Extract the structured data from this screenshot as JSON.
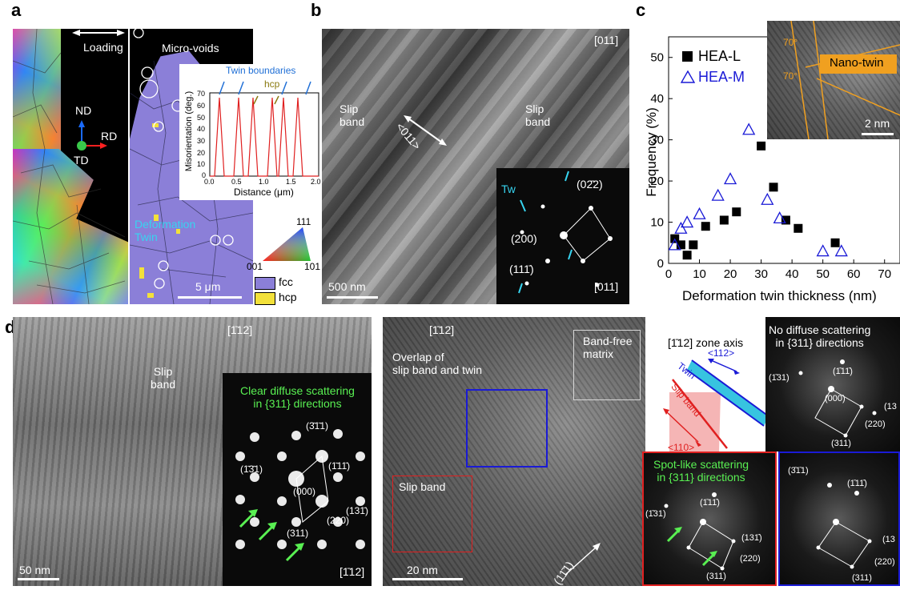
{
  "panel_a": {
    "label": "a",
    "loading": "Loading",
    "micro_voids": "Micro-voids",
    "axis_nd": "ND",
    "axis_rd": "RD",
    "axis_td": "TD",
    "deformation_twin": "Deformation\nTwin",
    "scale_bar": "5 μm",
    "ipf_111": "111",
    "ipf_001": "001",
    "ipf_101": "101",
    "legend_fcc": "fcc",
    "legend_hcp": "hcp",
    "colors": {
      "fcc": "#8b7fd8",
      "hcp": "#f3e13a",
      "misorientation_line": "#e02020",
      "twin_arrow": "#1f6fd6",
      "hcp_arrow": "#8a7a10"
    },
    "inset": {
      "twin_boundaries": "Twin boundaries",
      "hcp": "hcp",
      "xlabel": "Distance (μm)",
      "ylabel": "Misorientation (deg.)",
      "xticks": [
        "0.0",
        "0.5",
        "1.0",
        "1.5",
        "2.0"
      ],
      "yticks": [
        "0",
        "10",
        "20",
        "30",
        "40",
        "50",
        "60",
        "70"
      ]
    }
  },
  "panel_b": {
    "label": "b",
    "zone_top": "[011]",
    "slip_band_left": "Slip\nband",
    "slip_band_right": "Slip\nband",
    "direction": "<011>",
    "scale_bar": "500 nm",
    "diffraction": {
      "tw": "Tw",
      "spot_022": "(02̄2)",
      "spot_200": "(200)",
      "spot_111": "(111̄)",
      "zone": "[011]"
    }
  },
  "panel_c": {
    "label": "c",
    "nano_twin": "Nano-twin",
    "angle_top": "70°",
    "angle_bottom": "70°",
    "inset_scale": "2 nm"
  },
  "chart_data": {
    "type": "scatter",
    "title": "",
    "xlabel": "Deformation twin thickness (nm)",
    "ylabel": "Frequency (%)",
    "xlim": [
      0,
      75
    ],
    "ylim": [
      0,
      55
    ],
    "xticks": [
      0,
      10,
      20,
      30,
      40,
      50,
      60,
      70
    ],
    "yticks": [
      0,
      10,
      20,
      30,
      40,
      50
    ],
    "legend_placement": "top-left",
    "series": [
      {
        "name": "HEA-L",
        "marker": "filled-square",
        "color": "#000000",
        "x": [
          2,
          4,
          6,
          8,
          12,
          18,
          22,
          30,
          34,
          38,
          42,
          54
        ],
        "y": [
          6.0,
          4.5,
          2.0,
          4.5,
          9.0,
          10.5,
          12.5,
          28.5,
          18.5,
          10.5,
          8.5,
          5.0
        ]
      },
      {
        "name": "HEA-M",
        "marker": "open-triangle",
        "color": "#1a1ad6",
        "x": [
          2,
          4,
          6,
          10,
          16,
          20,
          26,
          32,
          36,
          50,
          56
        ],
        "y": [
          4.5,
          8.5,
          10.0,
          12.0,
          16.5,
          20.5,
          32.5,
          15.5,
          11.0,
          3.0,
          3.0
        ]
      }
    ]
  },
  "panel_d": {
    "label": "d",
    "zone_top": "[1̄12]",
    "slip_band": "Slip\nband",
    "diffuse": "Clear diffuse scattering\nin {311} directions",
    "spot_311_top": "(3̄1̄1)",
    "spot_131": "(1̄3̄1)",
    "spot_111": "(1̄11̄)",
    "spot_000": "(000)",
    "spot_131b": "(131̄)",
    "spot_220": "(220)",
    "spot_311": "(311)",
    "zone_bottom": "[1̄12]",
    "scale_bar": "50 nm",
    "green": "#59f052"
  },
  "panel_e": {
    "label": "e",
    "zone_top": "[1̄12]",
    "overlap": "Overlap of\nslip band and twin",
    "band_free": "Band-free\nmatrix",
    "slip_band": "Slip band",
    "scale_bar": "20 nm",
    "direction_111": "(11̄1)",
    "schematic": {
      "zone_axis": "[1̄12] zone axis",
      "twin": "Twin",
      "dir_112": "<112>",
      "slip_band": "Slip band",
      "dir_110": "<110>"
    },
    "fft_matrix": {
      "title": "No diffuse scattering\nin {311} directions",
      "spot_111": "(1̄11̄)",
      "spot_131": "(1̄31)",
      "spot_000": "(000)",
      "spot_13": "(13",
      "spot_220": "(220)",
      "spot_311": "(311)"
    },
    "fft_slip": {
      "title": "Spot-like scattering\nin {311} directions",
      "spot_111": "(1̄11̄)",
      "spot_131": "(1̄31)",
      "spot_131b": "(131̄)",
      "spot_220": "(220)",
      "spot_311": "(311)"
    },
    "fft_overlap": {
      "spot_311": "(3̄1̄1)",
      "spot_111": "(1̄11̄)",
      "spot_13": "(13",
      "spot_220": "(220)",
      "spot_311b": "(311)"
    },
    "box_colors": {
      "blue": "#1a1ad6",
      "red": "#e02020",
      "gray": "#d8d8d8"
    }
  }
}
